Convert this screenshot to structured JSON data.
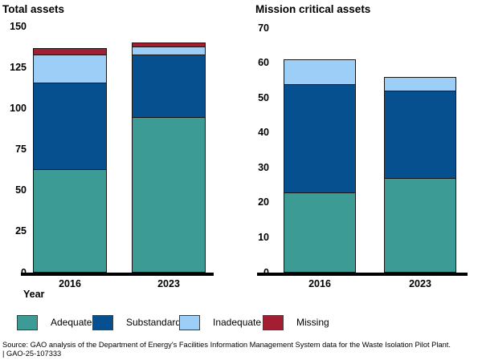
{
  "chart_data": [
    {
      "type": "bar",
      "stacked": true,
      "title": "Total assets",
      "categories": [
        "2016",
        "2023"
      ],
      "series": [
        {
          "name": "Adequate",
          "color": "#3C9B94",
          "values": [
            63,
            95
          ]
        },
        {
          "name": "Substandard",
          "color": "#07508F",
          "values": [
            53,
            38
          ]
        },
        {
          "name": "Inadequate",
          "color": "#9CCEF8",
          "values": [
            17,
            5
          ]
        },
        {
          "name": "Missing",
          "color": "#A41E33",
          "values": [
            4,
            2
          ]
        }
      ],
      "xlabel": "Year",
      "ylim": [
        0,
        150
      ],
      "yticks": [
        0,
        25,
        50,
        75,
        100,
        125,
        150
      ],
      "grid": "off",
      "legend_position": "bottom"
    },
    {
      "type": "bar",
      "stacked": true,
      "title": "Mission critical assets",
      "categories": [
        "2016",
        "2023"
      ],
      "series": [
        {
          "name": "Adequate",
          "color": "#3C9B94",
          "values": [
            23,
            27
          ]
        },
        {
          "name": "Substandard",
          "color": "#07508F",
          "values": [
            31,
            25
          ]
        },
        {
          "name": "Inadequate",
          "color": "#9CCEF8",
          "values": [
            7,
            4
          ]
        }
      ],
      "xlabel": "",
      "ylim": [
        0,
        70
      ],
      "yticks": [
        0,
        10,
        20,
        30,
        40,
        50,
        60,
        70
      ],
      "grid": "off",
      "legend_position": "bottom"
    }
  ],
  "legend": {
    "items": [
      {
        "label": "Adequate",
        "color": "#3C9B94"
      },
      {
        "label": "Substandard",
        "color": "#07508F"
      },
      {
        "label": "Inadequate",
        "color": "#9CCEF8"
      },
      {
        "label": "Missing",
        "color": "#A41E33"
      }
    ]
  },
  "source": {
    "line1": "Source: GAO analysis of the Department of Energy's Facilities Information Management System data for the Waste Isolation Pilot Plant.",
    "line2": "|  GAO-25-107333"
  }
}
